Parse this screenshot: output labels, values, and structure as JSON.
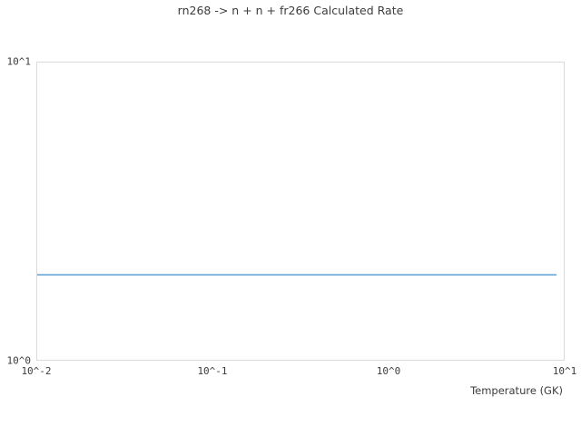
{
  "chart_data": {
    "type": "line",
    "title": "rn268 -> n + n + fr266 Calculated Rate",
    "xlabel": "Temperature (GK)",
    "ylabel": "",
    "xscale": "log",
    "yscale": "log",
    "xlim": [
      0.01,
      10
    ],
    "ylim": [
      1,
      10
    ],
    "grid": false,
    "legend": "none",
    "axis_color": "#d9d9d9",
    "text_color": "#3c3c3c",
    "x_ticks": [
      {
        "value": 0.01,
        "label": "10^-2"
      },
      {
        "value": 0.1,
        "label": "10^-1"
      },
      {
        "value": 1,
        "label": "10^0"
      },
      {
        "value": 10,
        "label": "10^1"
      }
    ],
    "y_ticks": [
      {
        "value": 1,
        "label": "10^0"
      },
      {
        "value": 10,
        "label": "10^1"
      }
    ],
    "series": [
      {
        "name": "calculated rate",
        "color": "#5b9fd3",
        "x": [
          0.01,
          9.1
        ],
        "y": [
          1.93,
          1.93
        ]
      }
    ]
  }
}
